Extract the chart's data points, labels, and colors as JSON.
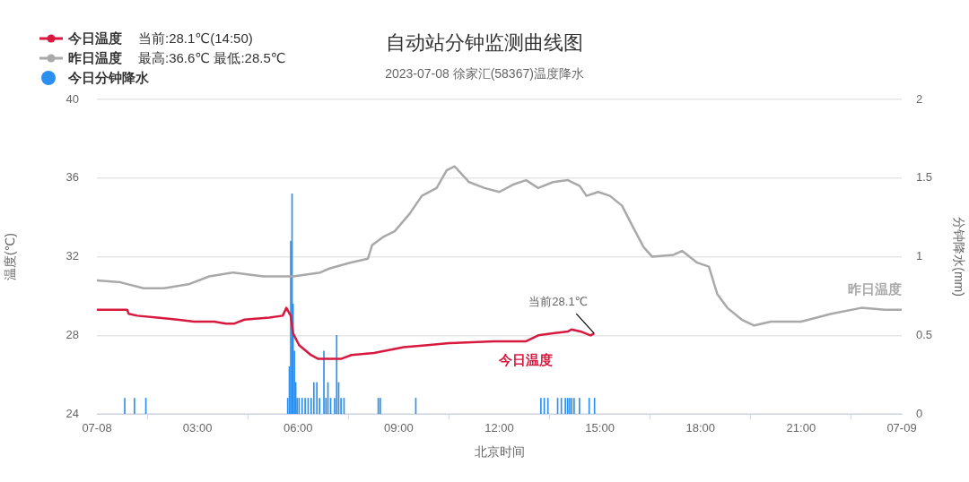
{
  "chart_data": {
    "type": "line",
    "title": "自动站分钟监测曲线图",
    "subtitle": "2023-07-08 徐家汇(58367)温度降水",
    "xlabel": "北京时间",
    "ylabel": "温度(℃)",
    "y2label": "分钟降水(mm)",
    "xlim": [
      0,
      24
    ],
    "xticks": [
      {
        "value": 0,
        "label": "07-08"
      },
      {
        "value": 3,
        "label": "03:00"
      },
      {
        "value": 6,
        "label": "06:00"
      },
      {
        "value": 9,
        "label": "09:00"
      },
      {
        "value": 12,
        "label": "12:00"
      },
      {
        "value": 15,
        "label": "15:00"
      },
      {
        "value": 18,
        "label": "18:00"
      },
      {
        "value": 21,
        "label": "21:00"
      },
      {
        "value": 24,
        "label": "07-09"
      }
    ],
    "ylim": [
      24,
      40
    ],
    "yticks": [
      24,
      28,
      32,
      36,
      40
    ],
    "y2lim": [
      0,
      2
    ],
    "y2ticks": [
      0,
      0.5,
      1,
      1.5,
      2
    ],
    "grid": "y",
    "legend": "top left",
    "marker": "none",
    "annotations": [
      {
        "text": "当前28.1℃",
        "x": 14.83,
        "y": 28.1
      },
      "当前:28.1℃(14:50)",
      "最高:36.6℃ 最低:28.5℃"
    ],
    "series": [
      {
        "name": "今日温度",
        "color": "#d7193f",
        "x": [
          0,
          0.9,
          0.95,
          1.2,
          1.8,
          2.4,
          2.9,
          3.5,
          3.85,
          4.1,
          4.4,
          5.14,
          5.54,
          5.65,
          5.78,
          5.85,
          6.03,
          6.38,
          6.6,
          7.28,
          7.59,
          8.26,
          9.15,
          9.86,
          10.5,
          11.83,
          12.8,
          13.16,
          13.6,
          14.05,
          14.15,
          14.42,
          14.72,
          14.83
        ],
        "values": [
          29.3,
          29.3,
          29.1,
          29.0,
          28.9,
          28.8,
          28.7,
          28.7,
          28.6,
          28.6,
          28.8,
          28.9,
          29.0,
          29.4,
          29.0,
          28.1,
          27.5,
          27.0,
          26.8,
          26.8,
          27.0,
          27.1,
          27.4,
          27.5,
          27.6,
          27.7,
          27.7,
          28.0,
          28.1,
          28.2,
          28.3,
          28.2,
          28.0,
          28.1
        ]
      },
      {
        "name": "昨日温度",
        "color": "#a9a9a9",
        "x": [
          0,
          0.7,
          1.39,
          2.0,
          2.73,
          3.35,
          4.07,
          4.96,
          5.86,
          6.66,
          6.93,
          7.55,
          8.08,
          8.21,
          8.53,
          8.88,
          9.33,
          9.69,
          10.13,
          10.43,
          10.67,
          11.1,
          11.56,
          12.0,
          12.45,
          12.8,
          13.16,
          13.6,
          14.05,
          14.4,
          14.6,
          14.95,
          15.3,
          15.66,
          15.93,
          16.3,
          16.56,
          17.2,
          17.45,
          17.9,
          18.25,
          18.5,
          18.8,
          19.23,
          19.6,
          20.1,
          21.0,
          21.9,
          22.8,
          23.5,
          24
        ],
        "values": [
          30.8,
          30.7,
          30.4,
          30.4,
          30.6,
          31.0,
          31.2,
          31.0,
          31.0,
          31.2,
          31.4,
          31.7,
          31.9,
          32.6,
          33.0,
          33.3,
          34.2,
          35.1,
          35.5,
          36.4,
          36.6,
          35.8,
          35.5,
          35.3,
          35.7,
          35.9,
          35.5,
          35.8,
          35.9,
          35.6,
          35.1,
          35.3,
          35.1,
          34.6,
          33.7,
          32.5,
          32.0,
          32.1,
          32.3,
          31.7,
          31.5,
          30.1,
          29.4,
          28.8,
          28.5,
          28.7,
          28.7,
          29.1,
          29.4,
          29.3,
          29.3
        ]
      },
      {
        "name": "今日分钟降水",
        "type": "bar",
        "axis": "y2",
        "color": "#2b8ff0",
        "x": [
          0.83,
          1.12,
          1.46,
          5.69,
          5.74,
          5.78,
          5.82,
          5.85,
          5.89,
          5.93,
          5.97,
          6.03,
          6.12,
          6.21,
          6.3,
          6.39,
          6.47,
          6.56,
          6.64,
          6.77,
          6.83,
          6.89,
          6.97,
          7.09,
          7.15,
          7.21,
          7.28,
          7.37,
          8.39,
          8.45,
          9.51,
          13.24,
          13.34,
          13.45,
          13.74,
          13.85,
          13.97,
          14.04,
          14.1,
          14.16,
          14.23,
          14.39,
          14.68,
          14.84
        ],
        "values": [
          0.1,
          0.1,
          0.1,
          0.1,
          0.3,
          1.1,
          1.4,
          0.7,
          0.4,
          0.2,
          0.1,
          0.1,
          0.1,
          0.1,
          0.1,
          0.1,
          0.2,
          0.2,
          0.1,
          0.4,
          0.1,
          0.2,
          0.1,
          0.1,
          0.5,
          0.2,
          0.1,
          0.1,
          0.1,
          0.1,
          0.1,
          0.1,
          0.1,
          0.1,
          0.1,
          0.1,
          0.1,
          0.1,
          0.1,
          0.1,
          0.1,
          0.1,
          0.1,
          0.1
        ]
      }
    ]
  }
}
